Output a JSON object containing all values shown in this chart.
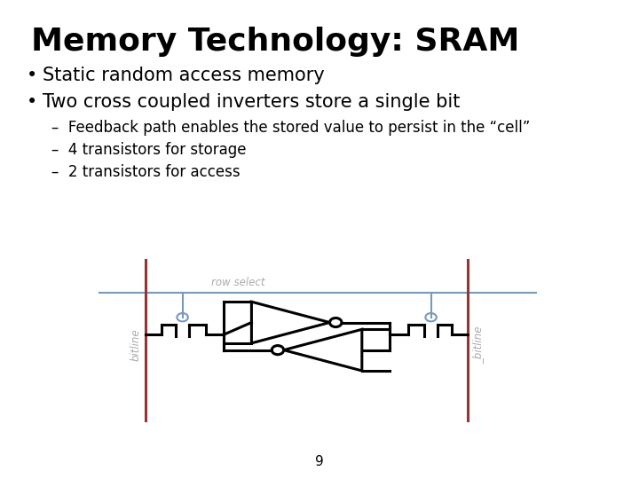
{
  "title": "Memory Technology: SRAM",
  "bullet1": "Static random access memory",
  "bullet2": "Two cross coupled inverters store a single bit",
  "sub1": "Feedback path enables the stored value to persist in the “cell”",
  "sub2": "4 transistors for storage",
  "sub3": "2 transistors for access",
  "page_num": "9",
  "bg_color": "#ffffff",
  "title_color": "#000000",
  "text_color": "#000000",
  "circuit_color": "#000000",
  "bitline_color": "#993333",
  "rowselect_color": "#7799BB",
  "label_color": "#aaaaaa",
  "title_fontsize": 26,
  "bullet_fontsize": 15,
  "sub_fontsize": 12
}
